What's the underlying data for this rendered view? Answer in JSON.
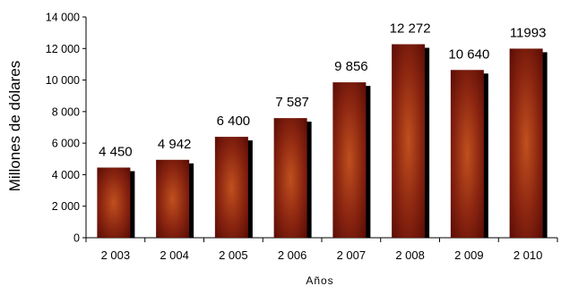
{
  "chart_data": {
    "type": "bar",
    "categories": [
      "2 003",
      "2 004",
      "2 005",
      "2 006",
      "2 007",
      "2 008",
      "2 009",
      "2 010"
    ],
    "values": [
      4450,
      4942,
      6400,
      7587,
      9856,
      12272,
      10640,
      11993
    ],
    "data_labels": [
      "4 450",
      "4 942",
      "6 400",
      "7 587",
      "9 856",
      "12 272",
      "10 640",
      "11993"
    ],
    "y_ticks": [
      0,
      2000,
      4000,
      6000,
      8000,
      10000,
      12000,
      14000
    ],
    "y_tick_labels": [
      "0",
      "2 000",
      "4 000",
      "6 000",
      "8 000",
      "10 000",
      "12 000",
      "14 000"
    ],
    "ylim": [
      0,
      14000
    ],
    "xlabel": "Años",
    "ylabel": "Millones  de dólares",
    "title": "",
    "grid": false,
    "colors": {
      "bar_center": "#c0501e",
      "bar_edge": "#5a0c06",
      "shadow": "#000000"
    }
  }
}
